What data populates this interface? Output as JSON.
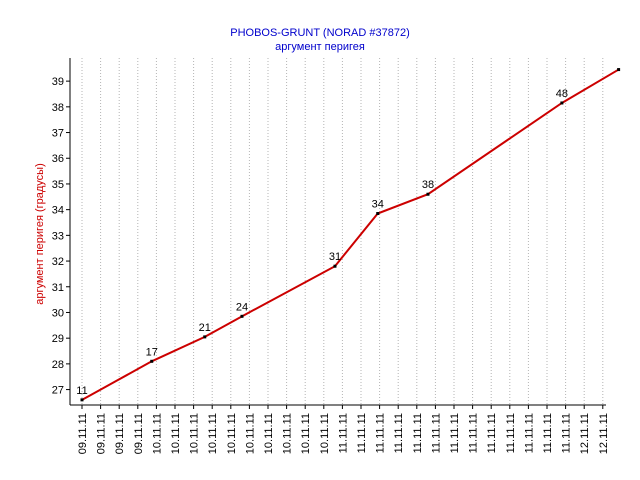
{
  "colors": {
    "title": "#0000cc",
    "axis_label": "#cc0000",
    "line": "#cc0000",
    "point": "#000000",
    "grid": "#b4b4b4",
    "axis": "#000000"
  },
  "chart_data": {
    "type": "line",
    "title": "PHOBOS-GRUNT (NORAD #37872)",
    "subtitle": "аргумент перигея",
    "xlabel": "",
    "ylabel": "аргумент перигея (градусы)",
    "grid": "vertical dotted",
    "legend": "none",
    "ylim": [
      26.4,
      39.9
    ],
    "yticks": [
      27,
      28,
      29,
      30,
      31,
      32,
      33,
      34,
      35,
      36,
      37,
      38,
      39
    ],
    "xticks": [
      "09.11.11",
      "09.11.11",
      "09.11.11",
      "09.11.11",
      "10.11.11",
      "10.11.11",
      "10.11.11",
      "10.11.11",
      "10.11.11",
      "10.11.11",
      "10.11.11",
      "10.11.11",
      "10.11.11",
      "10.11.11",
      "11.11.11",
      "11.11.11",
      "11.11.11",
      "11.11.11",
      "11.11.11",
      "11.11.11",
      "11.11.11",
      "11.11.11",
      "11.11.11",
      "11.11.11",
      "11.11.11",
      "11.11.11",
      "11.11.11",
      "12.11.11",
      "12.11.11"
    ],
    "series": [
      {
        "x": [
          0,
          3.75,
          6.6,
          8.6,
          13.6,
          15.9,
          18.6,
          25.8,
          28.85
        ],
        "values": [
          26.6,
          28.1,
          29.05,
          29.85,
          31.8,
          33.85,
          34.6,
          38.15,
          39.45
        ],
        "labels": [
          "11",
          "17",
          "21",
          "24",
          "31",
          "34",
          "38",
          "48",
          ""
        ]
      }
    ]
  }
}
